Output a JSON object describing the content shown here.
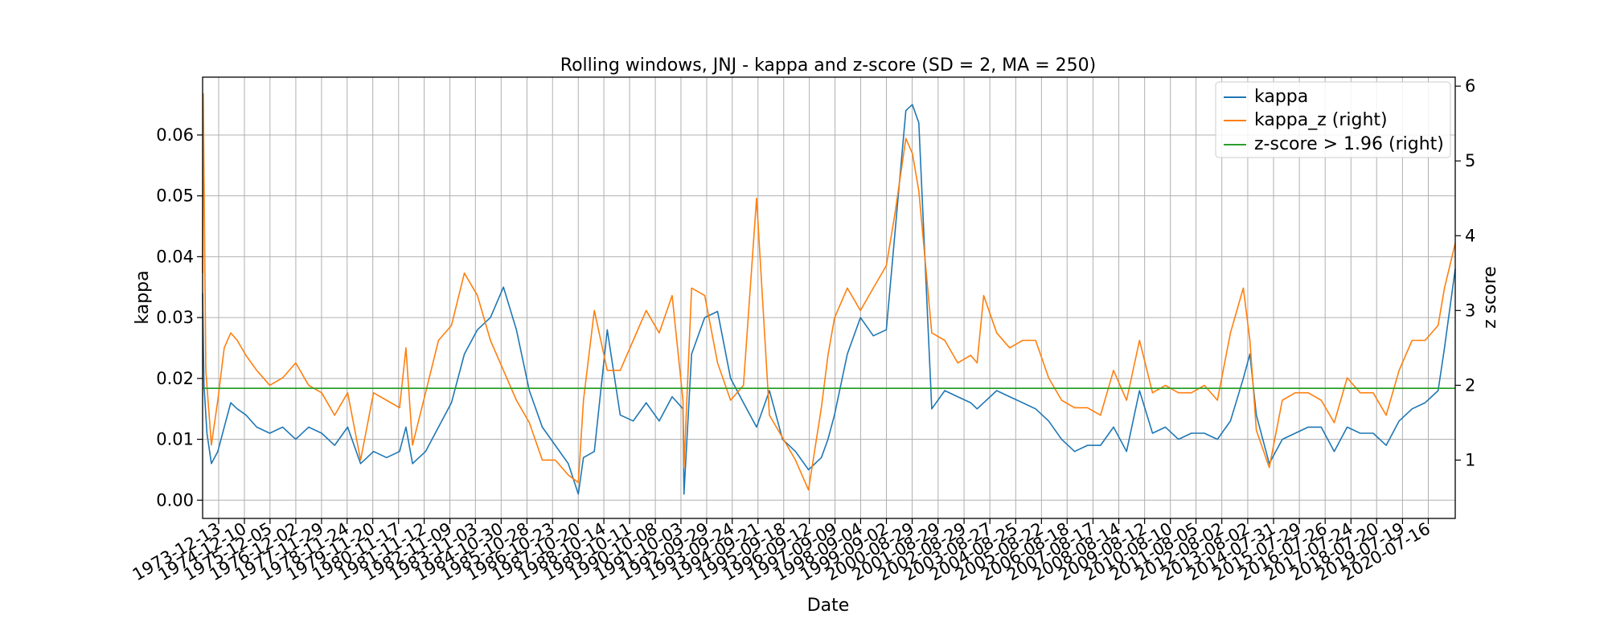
{
  "chart_data": {
    "type": "line",
    "title": "Rolling windows, JNJ - kappa and z-score (SD = 2, MA = 250)",
    "xlabel": "Date",
    "ylabel": "kappa",
    "ylabel_right": "z score",
    "ylim": [
      -0.003,
      0.0695
    ],
    "ylim_right": [
      0.22,
      6.12
    ],
    "y_ticks": [
      0.0,
      0.01,
      0.02,
      0.03,
      0.04,
      0.05,
      0.06
    ],
    "y_tick_labels": [
      "0.00",
      "0.01",
      "0.02",
      "0.03",
      "0.04",
      "0.05",
      "0.06"
    ],
    "y_right_ticks": [
      1,
      2,
      3,
      4,
      5,
      6
    ],
    "y_right_tick_labels": [
      "1",
      "2",
      "3",
      "4",
      "5",
      "6"
    ],
    "x_ticks": [
      "1973-12-13",
      "1974-12-10",
      "1975-12-05",
      "1976-12-02",
      "1977-11-29",
      "1978-11-24",
      "1979-11-20",
      "1980-11-17",
      "1981-11-12",
      "1982-11-09",
      "1983-11-03",
      "1984-10-30",
      "1985-10-28",
      "1986-10-23",
      "1987-10-20",
      "1988-10-14",
      "1989-10-11",
      "1990-10-08",
      "1991-10-03",
      "1992-09-29",
      "1993-09-24",
      "1994-09-21",
      "1995-09-18",
      "1996-09-12",
      "1997-09-09",
      "1998-09-04",
      "1999-09-02",
      "2000-08-29",
      "2001-08-29",
      "2002-08-29",
      "2003-08-27",
      "2004-08-25",
      "2005-08-22",
      "2006-08-18",
      "2007-08-17",
      "2008-08-14",
      "2009-08-12",
      "2010-08-10",
      "2011-08-05",
      "2012-08-02",
      "2013-08-02",
      "2014-07-31",
      "2015-07-29",
      "2016-07-26",
      "2017-07-24",
      "2018-07-20",
      "2019-07-19",
      "2020-07-16"
    ],
    "x_range": [
      "1973-05-01",
      "2021-07-30"
    ],
    "grid": true,
    "legend_position": "top-right",
    "series": [
      {
        "name": "kappa",
        "axis": "left",
        "color": "#1f77b4",
        "x": [
          "1973-05-01",
          "1973-05-20",
          "1973-07-01",
          "1973-09-01",
          "1973-12-01",
          "1974-03-01",
          "1974-06-01",
          "1974-09-01",
          "1975-01-01",
          "1975-06-01",
          "1975-12-01",
          "1976-06-01",
          "1976-12-01",
          "1977-06-01",
          "1977-12-01",
          "1978-06-01",
          "1978-12-01",
          "1979-06-01",
          "1979-12-01",
          "1980-06-01",
          "1980-12-01",
          "1981-03-01",
          "1981-06-01",
          "1981-12-01",
          "1982-06-01",
          "1982-12-01",
          "1983-06-01",
          "1983-12-01",
          "1984-06-01",
          "1984-12-01",
          "1985-06-01",
          "1985-12-01",
          "1986-06-01",
          "1986-12-01",
          "1987-06-01",
          "1987-10-20",
          "1988-01-01",
          "1988-06-01",
          "1988-12-01",
          "1989-06-01",
          "1989-12-01",
          "1990-06-01",
          "1990-12-01",
          "1991-06-01",
          "1991-11-01",
          "1991-11-15",
          "1992-03-01",
          "1992-09-01",
          "1993-03-01",
          "1993-09-01",
          "1994-03-01",
          "1994-09-01",
          "1995-03-01",
          "1995-09-01",
          "1996-03-01",
          "1996-09-01",
          "1997-03-01",
          "1997-06-01",
          "1997-09-01",
          "1998-03-01",
          "1998-09-01",
          "1999-03-01",
          "1999-09-01",
          "2000-01-01",
          "2000-06-01",
          "2000-09-01",
          "2000-12-01",
          "2001-06-01",
          "2001-12-01",
          "2002-06-01",
          "2002-12-01",
          "2003-03-01",
          "2003-06-01",
          "2003-12-01",
          "2004-06-01",
          "2004-12-01",
          "2005-06-01",
          "2005-12-01",
          "2006-06-01",
          "2006-12-01",
          "2007-06-01",
          "2007-12-01",
          "2008-06-01",
          "2008-12-01",
          "2009-06-01",
          "2009-12-01",
          "2010-06-01",
          "2010-12-01",
          "2011-06-01",
          "2011-12-01",
          "2012-06-01",
          "2012-12-01",
          "2013-06-01",
          "2013-09-01",
          "2013-12-01",
          "2014-06-01",
          "2014-12-01",
          "2015-06-01",
          "2015-12-01",
          "2016-06-01",
          "2016-12-01",
          "2017-06-01",
          "2017-12-01",
          "2018-06-01",
          "2018-12-01",
          "2019-06-01",
          "2019-12-01",
          "2020-06-01",
          "2020-12-01",
          "2021-03-01",
          "2021-07-30"
        ],
        "values": [
          0.034,
          0.019,
          0.011,
          0.006,
          0.008,
          0.012,
          0.016,
          0.015,
          0.014,
          0.012,
          0.011,
          0.012,
          0.01,
          0.012,
          0.011,
          0.009,
          0.012,
          0.006,
          0.008,
          0.007,
          0.008,
          0.012,
          0.006,
          0.008,
          0.012,
          0.016,
          0.024,
          0.028,
          0.03,
          0.035,
          0.028,
          0.018,
          0.012,
          0.009,
          0.006,
          0.001,
          0.007,
          0.008,
          0.028,
          0.014,
          0.013,
          0.016,
          0.013,
          0.017,
          0.015,
          0.001,
          0.024,
          0.03,
          0.031,
          0.02,
          0.016,
          0.012,
          0.018,
          0.01,
          0.008,
          0.005,
          0.007,
          0.01,
          0.014,
          0.024,
          0.03,
          0.027,
          0.028,
          0.044,
          0.064,
          0.065,
          0.062,
          0.015,
          0.018,
          0.017,
          0.016,
          0.015,
          0.016,
          0.018,
          0.017,
          0.016,
          0.015,
          0.013,
          0.01,
          0.008,
          0.009,
          0.009,
          0.012,
          0.008,
          0.018,
          0.011,
          0.012,
          0.01,
          0.011,
          0.011,
          0.01,
          0.013,
          0.02,
          0.024,
          0.014,
          0.006,
          0.01,
          0.011,
          0.012,
          0.012,
          0.008,
          0.012,
          0.011,
          0.011,
          0.009,
          0.013,
          0.015,
          0.016,
          0.018,
          0.025,
          0.038
        ]
      },
      {
        "name": "kappa_z (right)",
        "axis": "right",
        "color": "#ff7f0e",
        "x": [
          "1973-05-01",
          "1973-05-10",
          "1973-06-15",
          "1973-09-01",
          "1973-12-01",
          "1974-03-01",
          "1974-06-01",
          "1974-09-01",
          "1975-01-01",
          "1975-06-01",
          "1975-12-01",
          "1976-06-01",
          "1976-12-01",
          "1977-06-01",
          "1977-12-01",
          "1978-06-01",
          "1978-12-01",
          "1979-06-01",
          "1979-12-01",
          "1980-06-01",
          "1980-12-01",
          "1981-03-01",
          "1981-06-01",
          "1981-12-01",
          "1982-06-01",
          "1982-12-01",
          "1983-06-01",
          "1983-12-01",
          "1984-06-01",
          "1984-12-01",
          "1985-06-01",
          "1985-12-01",
          "1986-06-01",
          "1986-12-01",
          "1987-06-01",
          "1987-10-20",
          "1988-01-01",
          "1988-06-01",
          "1988-12-01",
          "1989-06-01",
          "1989-12-01",
          "1990-06-01",
          "1990-12-01",
          "1991-06-01",
          "1991-11-01",
          "1991-11-15",
          "1992-03-01",
          "1992-09-01",
          "1993-03-01",
          "1993-09-01",
          "1994-03-01",
          "1994-09-01",
          "1995-03-01",
          "1995-09-01",
          "1996-03-01",
          "1996-09-01",
          "1997-03-01",
          "1997-06-01",
          "1997-09-01",
          "1998-03-01",
          "1998-09-01",
          "1999-03-01",
          "1999-09-01",
          "2000-01-01",
          "2000-06-01",
          "2000-09-01",
          "2000-12-01",
          "2001-06-01",
          "2001-12-01",
          "2002-06-01",
          "2002-12-01",
          "2003-03-01",
          "2003-06-01",
          "2003-12-01",
          "2004-06-01",
          "2004-12-01",
          "2005-06-01",
          "2005-12-01",
          "2006-06-01",
          "2006-12-01",
          "2007-06-01",
          "2007-12-01",
          "2008-06-01",
          "2008-12-01",
          "2009-06-01",
          "2009-12-01",
          "2010-06-01",
          "2010-12-01",
          "2011-06-01",
          "2011-12-01",
          "2012-06-01",
          "2012-12-01",
          "2013-06-01",
          "2013-09-01",
          "2013-12-01",
          "2014-06-01",
          "2014-12-01",
          "2015-06-01",
          "2015-12-01",
          "2016-06-01",
          "2016-12-01",
          "2017-06-01",
          "2017-12-01",
          "2018-06-01",
          "2018-12-01",
          "2019-06-01",
          "2019-12-01",
          "2020-06-01",
          "2020-12-01",
          "2021-03-01",
          "2021-07-30"
        ],
        "values": [
          3.5,
          5.9,
          2.2,
          1.2,
          1.8,
          2.5,
          2.7,
          2.6,
          2.4,
          2.2,
          2.0,
          2.1,
          2.3,
          2.0,
          1.9,
          1.6,
          1.9,
          1.0,
          1.9,
          1.8,
          1.7,
          2.5,
          1.2,
          1.9,
          2.6,
          2.8,
          3.5,
          3.2,
          2.6,
          2.2,
          1.8,
          1.5,
          1.0,
          1.0,
          0.8,
          0.7,
          1.8,
          3.0,
          2.2,
          2.2,
          2.6,
          3.0,
          2.7,
          3.2,
          1.8,
          0.9,
          3.3,
          3.2,
          2.3,
          1.8,
          2.0,
          4.5,
          1.6,
          1.3,
          1.0,
          0.6,
          1.7,
          2.4,
          2.9,
          3.3,
          3.0,
          3.3,
          3.6,
          4.3,
          5.3,
          5.1,
          4.6,
          2.7,
          2.6,
          2.3,
          2.4,
          2.3,
          3.2,
          2.7,
          2.5,
          2.6,
          2.6,
          2.1,
          1.8,
          1.7,
          1.7,
          1.6,
          2.2,
          1.8,
          2.6,
          1.9,
          2.0,
          1.9,
          1.9,
          2.0,
          1.8,
          2.7,
          3.3,
          2.6,
          1.4,
          0.9,
          1.8,
          1.9,
          1.9,
          1.8,
          1.5,
          2.1,
          1.9,
          1.9,
          1.6,
          2.2,
          2.6,
          2.6,
          2.8,
          3.3,
          3.9
        ]
      },
      {
        "name": "z-score > 1.96 (right)",
        "axis": "right",
        "color": "#2ca02c",
        "x": [
          "1973-05-01",
          "2021-07-30"
        ],
        "values": [
          1.96,
          1.96
        ]
      }
    ]
  }
}
